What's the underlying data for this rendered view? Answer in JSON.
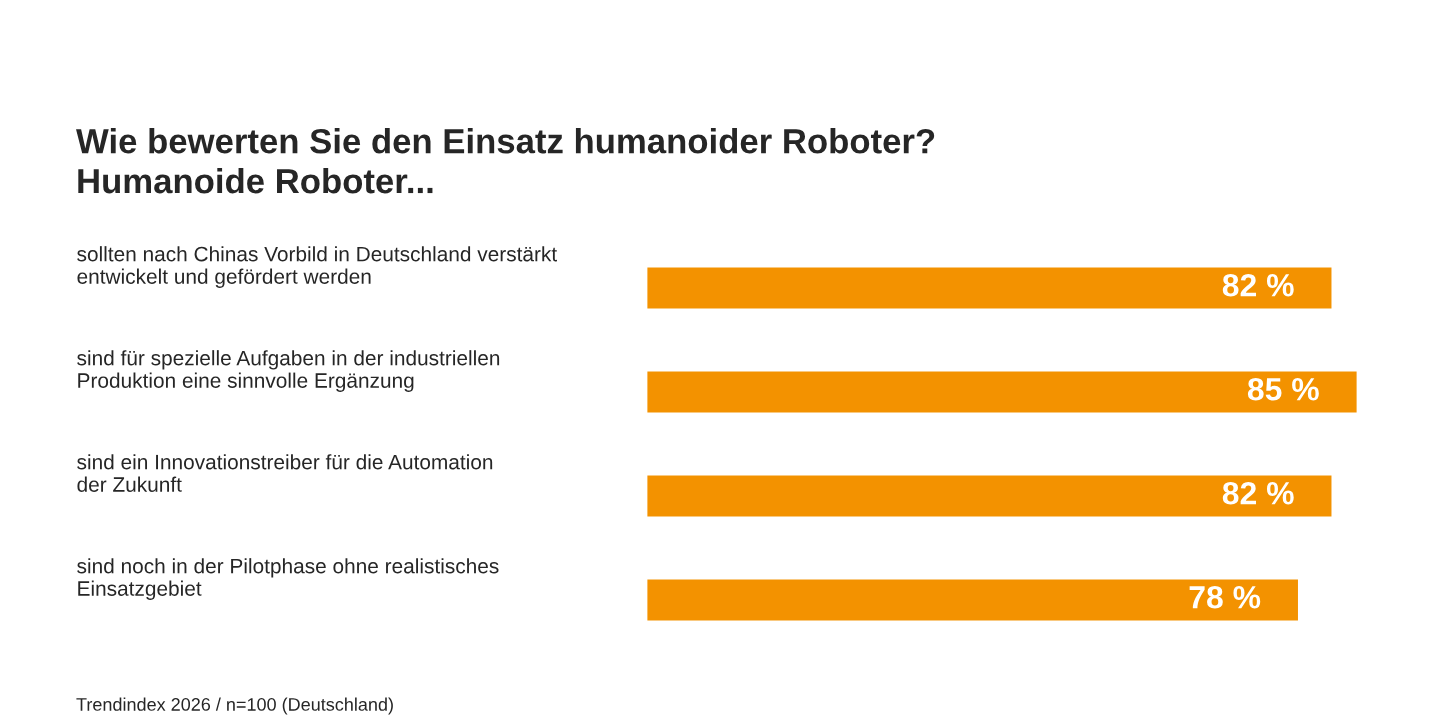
{
  "chart_data": {
    "type": "bar",
    "orientation": "horizontal",
    "title": "Wie bewerten Sie den Einsatz humanoider Roboter?\nHumanoide Roboter...",
    "categories": [
      "sollten nach Chinas Vorbild in Deutschland verstärkt\nentwickelt und gefördert werden",
      "sind für spezielle Aufgaben in der industriellen\nProduktion eine sinnvolle Ergänzung",
      "sind ein Innovationstreiber für die Automation\nder Zukunft",
      "sind noch in der Pilotphase ohne realistisches\nEinsatzgebiet"
    ],
    "values": [
      82,
      85,
      82,
      78
    ],
    "value_labels": [
      "82 %",
      "85 %",
      "82 %",
      "78 %"
    ],
    "color": "#f39200",
    "annotations": [
      "Trendindex 2026 / n=100 (Deutschland)"
    ]
  }
}
